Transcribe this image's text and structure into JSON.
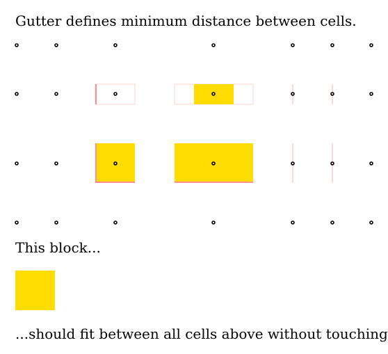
{
  "heading": "Gutter defines minimum distance between cells.",
  "middle_text": "This block...",
  "footer_text": "...should fit between all cells above without touching.",
  "colors": {
    "cell_fill": "#ffdd00",
    "cell_stroke": "#ff8f8f",
    "cell_stroke_light": "#ffd0d0",
    "marker": "#000000"
  }
}
